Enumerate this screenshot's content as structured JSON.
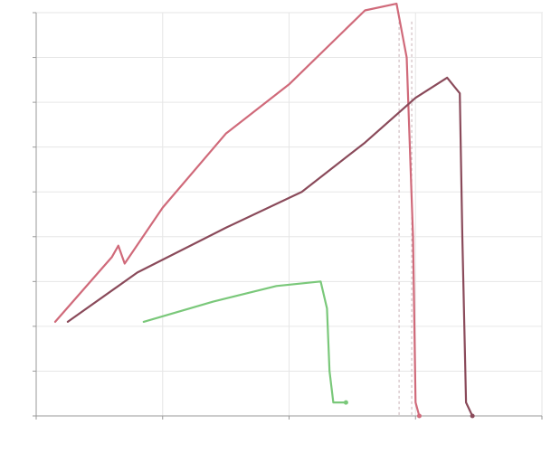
{
  "chart_data": {
    "type": "line",
    "title": "",
    "xlabel": "",
    "ylabel": "",
    "xlim": [
      0,
      4
    ],
    "ylim": [
      0,
      9
    ],
    "x_ticks": [
      0,
      1,
      2,
      3,
      4
    ],
    "y_ticks": [
      0,
      1,
      2,
      3,
      4,
      5,
      6,
      7,
      8,
      9
    ],
    "x_tick_labels": [
      "",
      "",
      "",
      "",
      ""
    ],
    "y_tick_labels": [
      "",
      "",
      "",
      "",
      "",
      "",
      "",
      "",
      "",
      ""
    ],
    "grid": true,
    "series": [
      {
        "color": "#d06a7a",
        "x": [
          0.15,
          0.6,
          0.65,
          0.7,
          1.0,
          1.5,
          2.0,
          2.6,
          2.85,
          2.93,
          2.98,
          3.0,
          3.03
        ],
        "y": [
          2.1,
          3.55,
          3.8,
          3.4,
          4.65,
          6.3,
          7.4,
          9.05,
          9.2,
          8.0,
          4.0,
          0.3,
          0.0
        ]
      },
      {
        "color": "#8a4a5a",
        "x": [
          0.25,
          0.8,
          1.5,
          2.1,
          2.6,
          3.0,
          3.25,
          3.35,
          3.37,
          3.4,
          3.45
        ],
        "y": [
          2.1,
          3.2,
          4.2,
          5.0,
          6.1,
          7.1,
          7.55,
          7.2,
          4.0,
          0.3,
          0.0
        ]
      },
      {
        "color": "#7ac87a",
        "x": [
          0.85,
          1.4,
          1.9,
          2.25,
          2.3,
          2.32,
          2.35,
          2.45
        ],
        "y": [
          2.1,
          2.55,
          2.9,
          3.0,
          2.4,
          1.0,
          0.3,
          0.3
        ]
      }
    ],
    "annotations": [
      "",
      "",
      ""
    ],
    "vlines_x": [
      2.87,
      2.97
    ]
  }
}
